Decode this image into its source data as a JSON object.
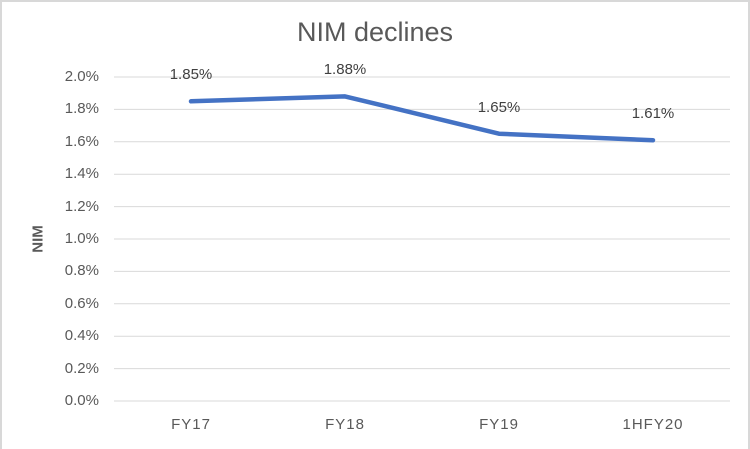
{
  "chart": {
    "title": "NIM declines",
    "y_axis_title": "NIM"
  },
  "chart_data": {
    "type": "line",
    "title": "NIM declines",
    "xlabel": "",
    "ylabel": "NIM",
    "categories": [
      "FY17",
      "FY18",
      "FY19",
      "1HFY20"
    ],
    "series": [
      {
        "name": "NIM",
        "values": [
          1.85,
          1.88,
          1.65,
          1.61
        ],
        "data_labels": [
          "1.85%",
          "1.88%",
          "1.65%",
          "1.61%"
        ],
        "color": "#4472C4"
      }
    ],
    "ylim": [
      0.0,
      2.0
    ],
    "ytick_step": 0.2,
    "ytick_labels": [
      "0.0%",
      "0.2%",
      "0.4%",
      "0.6%",
      "0.8%",
      "1.0%",
      "1.2%",
      "1.4%",
      "1.6%",
      "1.8%",
      "2.0%"
    ],
    "grid": true,
    "legend": false,
    "data_labels_visible": true,
    "colors": {
      "line": "#4472C4",
      "gridline": "#D9D9D9",
      "axis_line": "#D9D9D9",
      "text": "#595959",
      "data_label_text": "#404040",
      "frame_border": "#D8D8D8"
    }
  }
}
